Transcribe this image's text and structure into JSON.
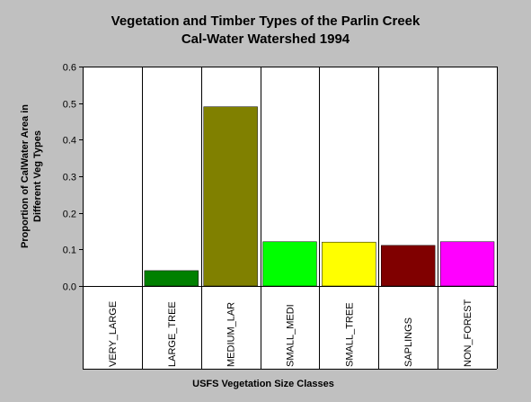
{
  "chart_data": {
    "type": "bar",
    "title_lines": [
      "Vegetation and Timber Types of the Parlin Creek",
      "Cal-Water Watershed 1994"
    ],
    "xlabel": "USFS Vegetation Size Classes",
    "ylabel_lines": [
      "Proportion of CalWater Area in",
      "Different Veg Types"
    ],
    "categories": [
      "VERY_LARGE",
      "LARGE_TREE",
      "MEDIUM_LAR",
      "SMALL_MEDI",
      "SMALL_TREE",
      "SAPLINGS",
      "NON_FOREST"
    ],
    "values": [
      0.0,
      0.042,
      0.49,
      0.121,
      0.12,
      0.111,
      0.121
    ],
    "colors": [
      "#ffffff",
      "#008000",
      "#808000",
      "#00ff00",
      "#ffff00",
      "#800000",
      "#ff00ff"
    ],
    "ylim": [
      0,
      0.6
    ],
    "yticks": [
      "0.0",
      "0.1",
      "0.2",
      "0.3",
      "0.4",
      "0.5",
      "0.6"
    ],
    "grid": "vertical",
    "legend": "none",
    "plot_background": "#ffffff",
    "page_background": "#c0c0c0"
  }
}
